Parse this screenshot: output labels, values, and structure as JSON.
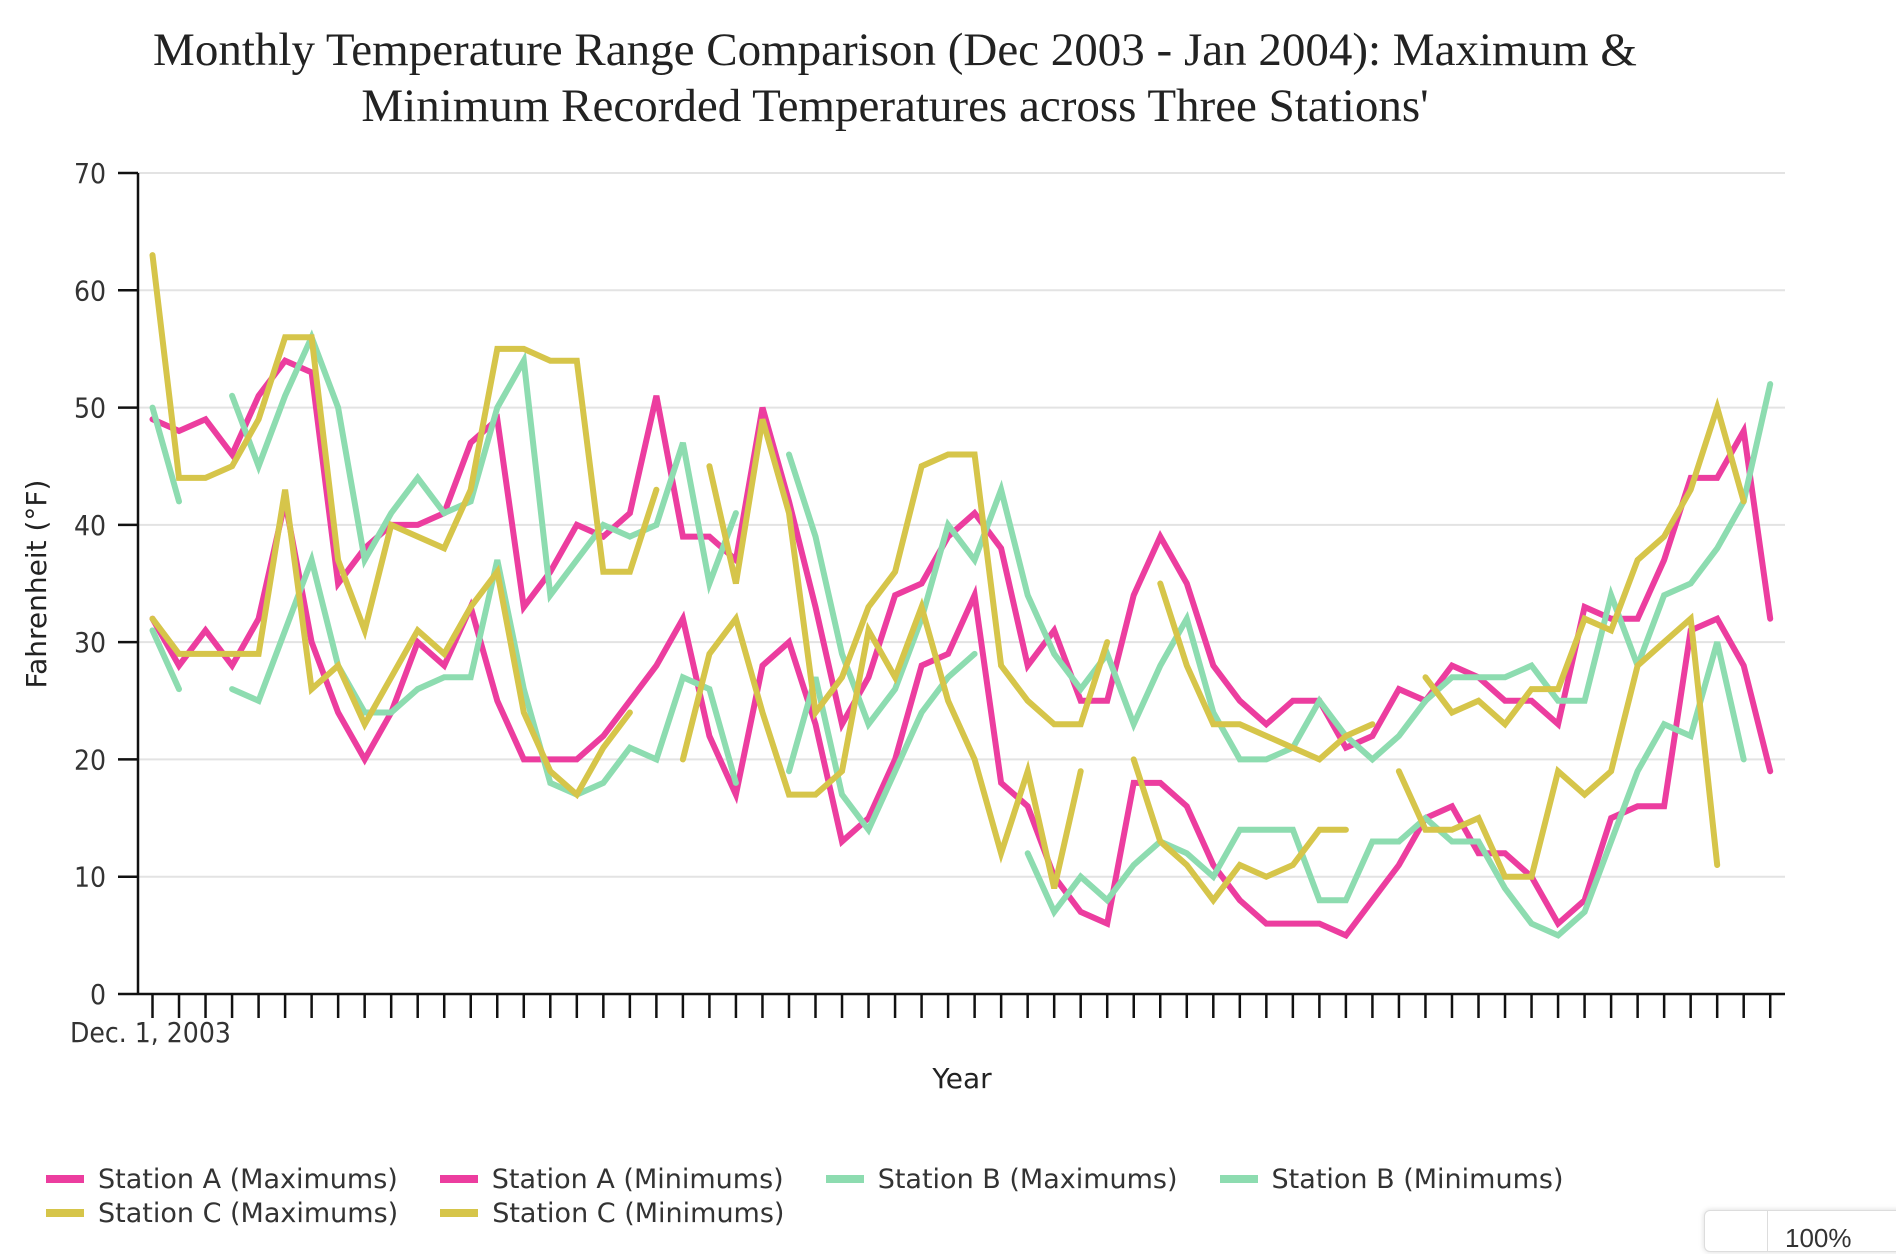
{
  "chart_data": {
    "type": "line",
    "title": "Monthly Temperature Range Comparison (Dec 2003 - Jan 2004): Maximum & Minimum Recorded Temperatures across Three Stations'",
    "title_lines": [
      "Monthly Temperature Range Comparison (Dec 2003 - Jan 2004): Maximum &",
      "Minimum Recorded Temperatures across Three Stations'"
    ],
    "xlabel": "Year",
    "ylabel": "Fahrenheit (°F)",
    "ylim": [
      0,
      70
    ],
    "yticks": [
      0,
      10,
      20,
      30,
      40,
      50,
      60,
      70
    ],
    "x_first_label": "Dec. 1, 2003",
    "x_count": 62,
    "x_description": "Daily points from Dec 1, 2003 to Jan 31, 2004",
    "grid": true,
    "legend_position": "bottom",
    "series": [
      {
        "name": "Station A (Maximums)",
        "color": "#ec3d9f",
        "values": [
          49,
          48,
          49,
          46,
          51,
          54,
          53,
          35,
          38,
          40,
          40,
          41,
          47,
          49,
          33,
          36,
          40,
          39,
          41,
          51,
          39,
          39,
          37,
          50,
          42,
          33,
          23,
          27,
          34,
          35,
          39,
          41,
          38,
          28,
          31,
          25,
          25,
          34,
          39,
          35,
          28,
          25,
          23,
          25,
          25,
          21,
          22,
          26,
          25,
          28,
          27,
          25,
          25,
          23,
          33,
          32,
          32,
          37,
          44,
          44,
          48,
          32
        ]
      },
      {
        "name": "Station A (Minimums)",
        "color": "#ec3d9f",
        "values": [
          32,
          28,
          31,
          28,
          32,
          42,
          30,
          24,
          20,
          24,
          30,
          28,
          33,
          25,
          20,
          20,
          20,
          22,
          25,
          28,
          32,
          22,
          17,
          28,
          30,
          23,
          13,
          15,
          20,
          28,
          29,
          34,
          18,
          16,
          10,
          7,
          6,
          18,
          18,
          16,
          11,
          8,
          6,
          6,
          6,
          5,
          8,
          11,
          15,
          16,
          12,
          12,
          10,
          6,
          8,
          15,
          16,
          16,
          31,
          32,
          28,
          19
        ]
      },
      {
        "name": "Station B (Maximums)",
        "color": "#8ddcb0",
        "values": [
          50,
          42,
          null,
          51,
          45,
          51,
          56,
          50,
          37,
          41,
          44,
          41,
          42,
          50,
          54,
          34,
          37,
          40,
          39,
          40,
          47,
          35,
          41,
          null,
          46,
          39,
          29,
          23,
          26,
          32,
          40,
          37,
          43,
          34,
          29,
          26,
          29,
          23,
          28,
          32,
          24,
          20,
          20,
          21,
          25,
          22,
          20,
          22,
          25,
          27,
          27,
          27,
          28,
          25,
          25,
          34,
          28,
          34,
          35,
          38,
          42,
          52
        ]
      },
      {
        "name": "Station B (Minimums)",
        "color": "#8ddcb0",
        "values": [
          31,
          26,
          null,
          26,
          25,
          31,
          37,
          28,
          24,
          24,
          26,
          27,
          27,
          37,
          26,
          18,
          17,
          18,
          21,
          20,
          27,
          26,
          18,
          null,
          19,
          27,
          17,
          14,
          19,
          24,
          27,
          29,
          null,
          12,
          7,
          10,
          8,
          11,
          13,
          12,
          10,
          14,
          14,
          14,
          8,
          8,
          13,
          13,
          15,
          13,
          13,
          9,
          6,
          5,
          7,
          13,
          19,
          23,
          22,
          30,
          20,
          null
        ]
      },
      {
        "name": "Station C (Maximums)",
        "color": "#d6c54a",
        "values": [
          63,
          44,
          44,
          45,
          49,
          56,
          56,
          37,
          31,
          40,
          39,
          38,
          43,
          55,
          55,
          54,
          54,
          36,
          36,
          43,
          null,
          45,
          35,
          49,
          41,
          24,
          27,
          33,
          36,
          45,
          46,
          46,
          28,
          25,
          23,
          23,
          30,
          null,
          35,
          28,
          23,
          23,
          22,
          21,
          20,
          22,
          23,
          null,
          27,
          24,
          25,
          23,
          26,
          26,
          32,
          31,
          37,
          39,
          43,
          50,
          42,
          null
        ]
      },
      {
        "name": "Station C (Minimums)",
        "color": "#d6c54a",
        "values": [
          32,
          29,
          29,
          29,
          29,
          43,
          26,
          28,
          23,
          27,
          31,
          29,
          33,
          36,
          24,
          19,
          17,
          21,
          24,
          null,
          20,
          29,
          32,
          24,
          17,
          17,
          19,
          31,
          27,
          33,
          25,
          20,
          12,
          19,
          9,
          19,
          null,
          20,
          13,
          11,
          8,
          11,
          10,
          11,
          14,
          14,
          null,
          19,
          14,
          14,
          15,
          10,
          10,
          19,
          17,
          19,
          28,
          30,
          32,
          11,
          null,
          null
        ]
      }
    ]
  },
  "legend": {
    "items": [
      {
        "label": "Station A (Maximums)",
        "color": "#ec3d9f"
      },
      {
        "label": "Station A (Minimums)",
        "color": "#ec3d9f"
      },
      {
        "label": "Station B (Maximums)",
        "color": "#8ddcb0"
      },
      {
        "label": "Station B (Minimums)",
        "color": "#8ddcb0"
      },
      {
        "label": "Station C (Maximums)",
        "color": "#d6c54a"
      },
      {
        "label": "Station C (Minimums)",
        "color": "#d6c54a"
      }
    ]
  },
  "zoom_widget": {
    "value": "100%"
  }
}
